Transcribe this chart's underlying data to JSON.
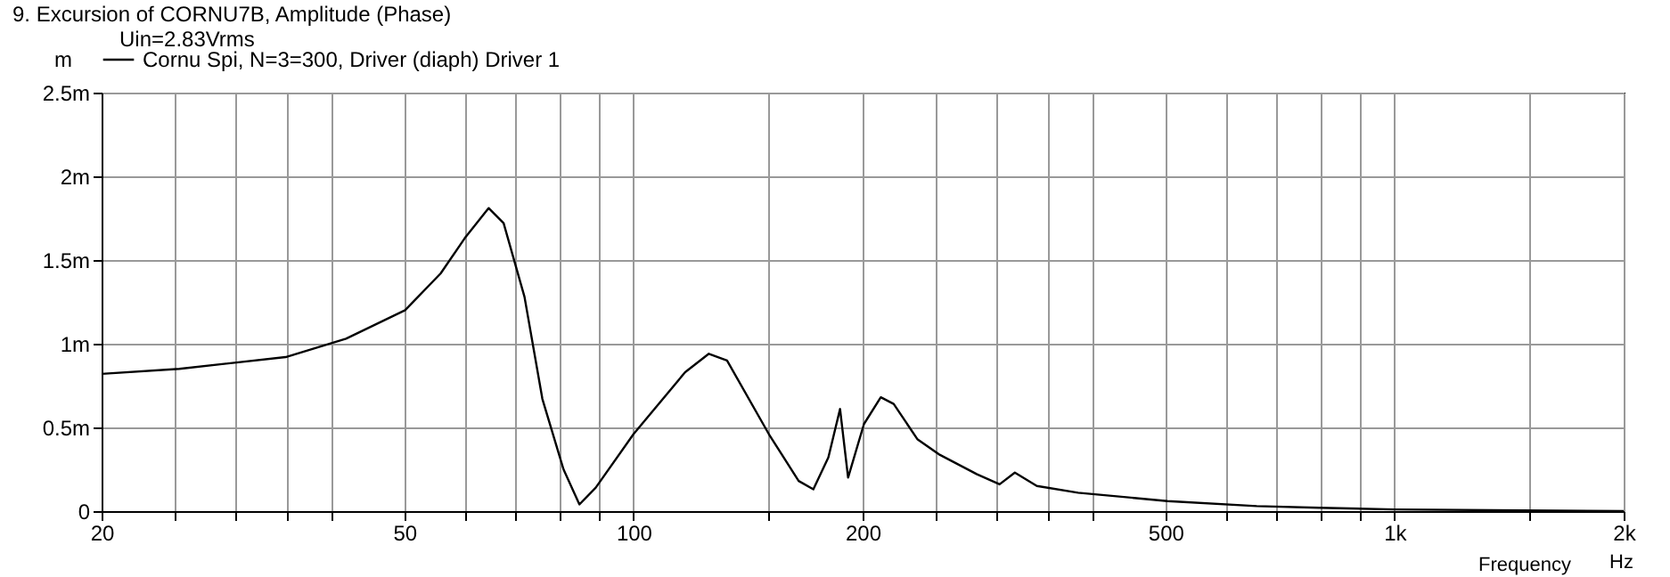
{
  "chart_data": {
    "type": "line",
    "title": "9. Excursion of CORNU7B, Amplitude (Phase)",
    "subtitle": "Uin=2.83Vrms",
    "xlabel": "Frequency",
    "ylabel": "m",
    "annotations": [
      "Hz"
    ],
    "log": "x",
    "grid": true,
    "legend": "top left",
    "line_style": "solid",
    "marker": "none",
    "xlim": [
      20,
      2000
    ],
    "ylim": [
      0,
      2.5
    ],
    "xticks": [
      20,
      {
        "value": 25,
        "label": null
      },
      {
        "value": 30,
        "label": null
      },
      {
        "value": 35,
        "label": null
      },
      {
        "value": 40,
        "label": null
      },
      50,
      {
        "value": 60,
        "label": null
      },
      {
        "value": 70,
        "label": null
      },
      {
        "value": 80,
        "label": null
      },
      {
        "value": 90,
        "label": null
      },
      100,
      {
        "value": 150,
        "label": null
      },
      200,
      {
        "value": 250,
        "label": null
      },
      {
        "value": 300,
        "label": null
      },
      {
        "value": 350,
        "label": null
      },
      {
        "value": 400,
        "label": null
      },
      500,
      {
        "value": 600,
        "label": null
      },
      {
        "value": 700,
        "label": null
      },
      {
        "value": 800,
        "label": null
      },
      {
        "value": 900,
        "label": null
      },
      {
        "value": 1000,
        "label": "1k"
      },
      {
        "value": 1500,
        "label": null
      },
      {
        "value": 2000,
        "label": "2k"
      }
    ],
    "yticks": [
      0,
      {
        "value": 0.5,
        "label": "0.5m"
      },
      {
        "value": 1,
        "label": "1m"
      },
      {
        "value": 1.5,
        "label": "1.5m"
      },
      {
        "value": 2,
        "label": "2m"
      },
      {
        "value": 2.5,
        "label": "2.5m"
      }
    ],
    "x": [
      20,
      25.3,
      34.9,
      41.9,
      50.1,
      55.8,
      60.0,
      64.5,
      67.5,
      71.9,
      75.9,
      80.9,
      84.9,
      89.2,
      100,
      116.9,
      125.6,
      132.7,
      150.6,
      164.8,
      172.3,
      180.3,
      186.8,
      191.4,
      200.8,
      211.3,
      219.7,
      236,
      251.8,
      282.7,
      302.7,
      317,
      338.8,
      383.9,
      503,
      659,
      796,
      1000,
      2000
    ],
    "series": [
      {
        "name": "Cornu Spi, N=3=300, Driver (diaph) Driver 1",
        "color": "#000000",
        "values": [
          0.82,
          0.85,
          0.92,
          1.03,
          1.2,
          1.42,
          1.63,
          1.81,
          1.72,
          1.28,
          0.67,
          0.25,
          0.04,
          0.14,
          0.46,
          0.83,
          0.94,
          0.9,
          0.46,
          0.18,
          0.13,
          0.32,
          0.61,
          0.2,
          0.52,
          0.68,
          0.64,
          0.43,
          0.34,
          0.22,
          0.16,
          0.23,
          0.15,
          0.11,
          0.06,
          0.03,
          0.02,
          0.01,
          0.0
        ]
      }
    ]
  }
}
